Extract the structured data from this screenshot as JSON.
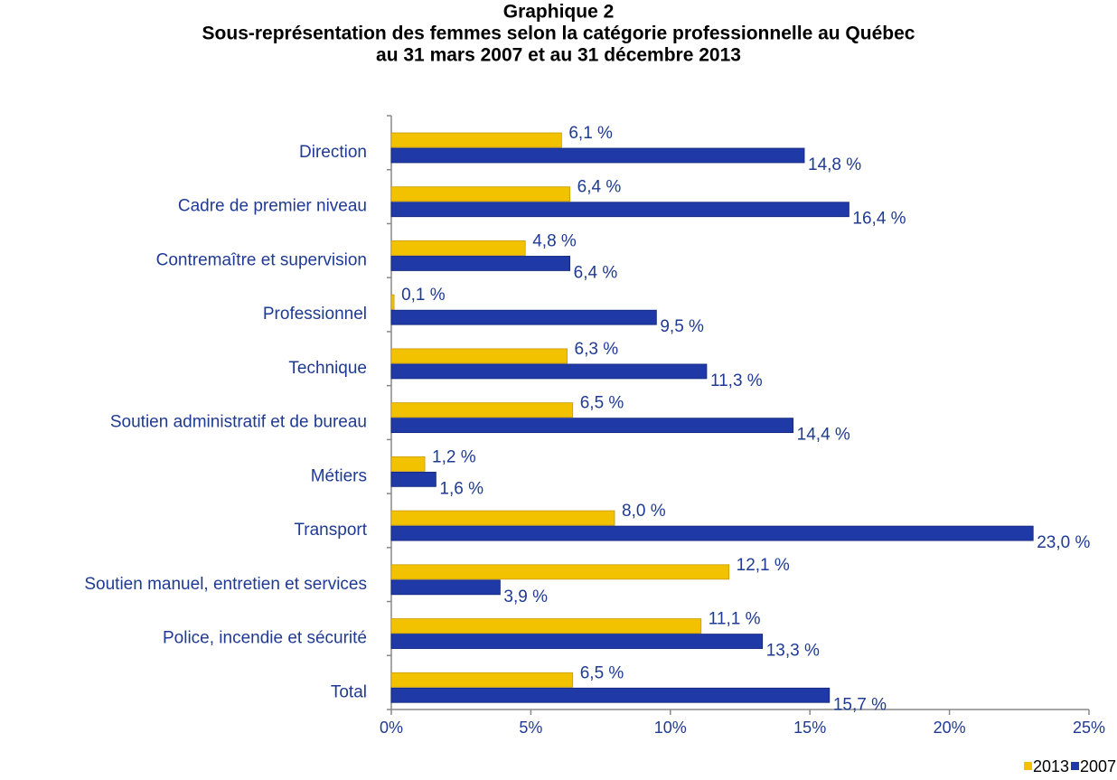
{
  "chart_data": {
    "type": "hbar",
    "title": "Graphique 2",
    "subtitle": [
      "Sous-représentation des femmes selon la catégorie professionnelle au Québec",
      "au 31 mars 2007 et au 31 décembre 2013"
    ],
    "categories": [
      "Direction",
      "Cadre de premier niveau",
      "Contremaître et supervision",
      "Professionnel",
      "Technique",
      "Soutien administratif et de bureau",
      "Métiers",
      "Transport",
      "Soutien manuel, entretien et services",
      "Police, incendie et sécurité",
      "Total"
    ],
    "series": [
      {
        "name": "2013",
        "color": "#f2c200",
        "values": [
          6.1,
          6.4,
          4.8,
          0.1,
          6.3,
          6.5,
          1.2,
          8.0,
          12.1,
          11.1,
          6.5
        ],
        "value_labels": [
          "6,1 %",
          "6,4 %",
          "4,8 %",
          "0,1 %",
          "6,3 %",
          "6,5 %",
          "1,2 %",
          "8,0 %",
          "12,1 %",
          "11,1 %",
          "6,5 %"
        ]
      },
      {
        "name": "2007",
        "color": "#1f39a6",
        "values": [
          14.8,
          16.4,
          6.4,
          9.5,
          11.3,
          14.4,
          1.6,
          23.0,
          3.9,
          13.3,
          15.7
        ],
        "value_labels": [
          "14,8 %",
          "16,4 %",
          "6,4 %",
          "9,5 %",
          "11,3 %",
          "14,4 %",
          "1,6 %",
          "23,0 %",
          "3,9 %",
          "13,3 %",
          "15,7 %"
        ]
      }
    ],
    "xlim": [
      0,
      25
    ],
    "xticks": [
      {
        "value": 0,
        "label": "0%"
      },
      {
        "value": 5,
        "label": "5%"
      },
      {
        "value": 10,
        "label": "10%"
      },
      {
        "value": 15,
        "label": "15%"
      },
      {
        "value": 20,
        "label": "20%"
      },
      {
        "value": 25,
        "label": "25%"
      }
    ],
    "legend": "bottom-right"
  }
}
